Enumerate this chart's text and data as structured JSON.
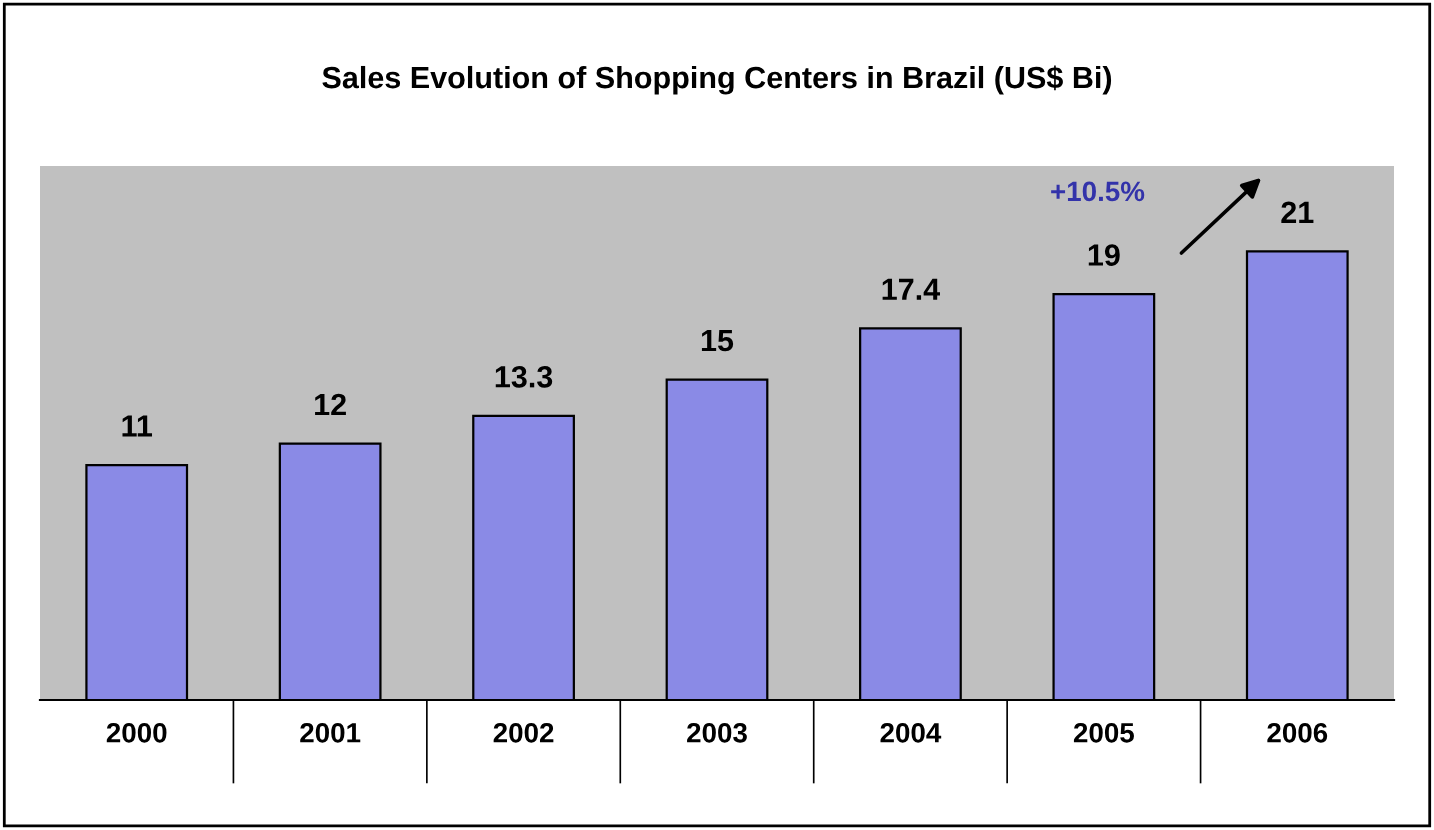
{
  "chart_data": {
    "type": "bar",
    "title": "Sales Evolution of Shopping Centers in Brazil (US$ Bi)",
    "categories": [
      "2000",
      "2001",
      "2002",
      "2003",
      "2004",
      "2005",
      "2006"
    ],
    "values": [
      11,
      12,
      13.3,
      15,
      17.4,
      19,
      21
    ],
    "color": "#8a8ae6",
    "ylim": [
      0,
      25
    ],
    "data_labels": true,
    "grid": false,
    "legend": false,
    "annotations": [
      "+10.5%"
    ]
  }
}
